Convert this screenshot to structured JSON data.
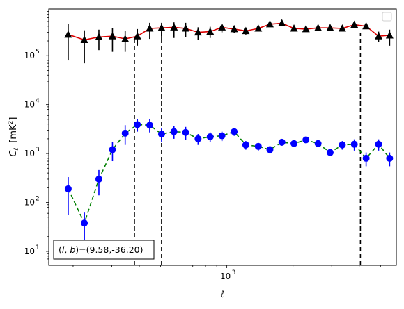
{
  "chart_data": {
    "type": "scatter",
    "xscale": "log",
    "yscale": "log",
    "xlim": [
      155,
      5900
    ],
    "ylim": [
      5.2,
      900000
    ],
    "xlabel": "ℓ",
    "ylabel_main": "C",
    "ylabel_sub": "ℓ",
    "ylabel_unit": "[mK",
    "ylabel_unit_sup": "2",
    "ylabel_unit_close": "]",
    "x_ticks": [
      {
        "value": 1000,
        "base": "10",
        "exp": "3"
      }
    ],
    "y_ticks": [
      {
        "value": 10,
        "base": "10",
        "exp": "1"
      },
      {
        "value": 100,
        "base": "10",
        "exp": "2"
      },
      {
        "value": 1000,
        "base": "10",
        "exp": "3"
      },
      {
        "value": 10000,
        "base": "10",
        "exp": "4"
      },
      {
        "value": 100000,
        "base": "10",
        "exp": "5"
      }
    ],
    "annotation": "(l, b)=(9.58,-36.20)",
    "annotation_parts": {
      "prefix": "(",
      "l": "l",
      "sep": ", ",
      "b": "b",
      "suffix": ")=(9.58,-36.20)"
    },
    "legend": {
      "placement": "upper-right",
      "entries": []
    },
    "vlines": [
      {
        "x": 380,
        "ymax": 250000
      },
      {
        "x": 505,
        "ymax": 320000
      },
      {
        "x": 4050,
        "ymax": 290000
      }
    ],
    "series": [
      {
        "marker": "triangle",
        "color": "#000000",
        "line_color": "#dd0000",
        "line_style": "solid",
        "x": [
          190,
          225,
          262,
          302,
          345,
          392,
          446,
          505,
          575,
          650,
          740,
          840,
          950,
          1080,
          1220,
          1390,
          1570,
          1780,
          2020,
          2290,
          2600,
          2950,
          3350,
          3800,
          4300,
          4900,
          5500
        ],
        "y": [
          270000,
          210000,
          240000,
          250000,
          220000,
          250000,
          360000,
          370000,
          380000,
          360000,
          300000,
          310000,
          380000,
          350000,
          320000,
          360000,
          440000,
          460000,
          360000,
          350000,
          370000,
          370000,
          360000,
          430000,
          400000,
          250000,
          260000
        ],
        "y_lo": [
          80000,
          70000,
          130000,
          120000,
          120000,
          160000,
          220000,
          220000,
          230000,
          240000,
          210000,
          230000,
          300000,
          290000,
          270000,
          320000,
          400000,
          410000,
          330000,
          320000,
          340000,
          340000,
          330000,
          400000,
          370000,
          190000,
          160000
        ],
        "y_hi": [
          440000,
          330000,
          340000,
          370000,
          320000,
          350000,
          470000,
          470000,
          480000,
          470000,
          380000,
          390000,
          450000,
          410000,
          370000,
          400000,
          480000,
          510000,
          390000,
          380000,
          400000,
          400000,
          390000,
          460000,
          430000,
          310000,
          340000
        ]
      },
      {
        "marker": "circle",
        "color": "#0000ff",
        "line_color": "#008000",
        "line_style": "dashed",
        "x": [
          190,
          225,
          262,
          302,
          345,
          392,
          446,
          505,
          575,
          650,
          740,
          840,
          950,
          1080,
          1220,
          1390,
          1570,
          1780,
          2020,
          2290,
          2600,
          2950,
          3350,
          3800,
          4300,
          4900,
          5500
        ],
        "y": [
          190,
          38,
          300,
          1200,
          2600,
          3900,
          3800,
          2500,
          2800,
          2700,
          2000,
          2200,
          2300,
          2800,
          1500,
          1400,
          1200,
          1700,
          1600,
          1900,
          1600,
          1050,
          1500,
          1550,
          800,
          1550,
          800
        ],
        "y_lo": [
          55,
          14,
          140,
          700,
          1500,
          2800,
          2700,
          1700,
          2000,
          1900,
          1500,
          1700,
          1800,
          2300,
          1200,
          1150,
          1000,
          1450,
          1380,
          1650,
          1400,
          900,
          1200,
          1150,
          550,
          1150,
          550
        ],
        "y_hi": [
          330,
          62,
          460,
          1750,
          3800,
          5000,
          5000,
          3300,
          3700,
          3500,
          2500,
          2700,
          2800,
          3300,
          1800,
          1650,
          1400,
          1950,
          1820,
          2150,
          1800,
          1200,
          1800,
          1950,
          1050,
          1950,
          1050
        ]
      }
    ]
  }
}
